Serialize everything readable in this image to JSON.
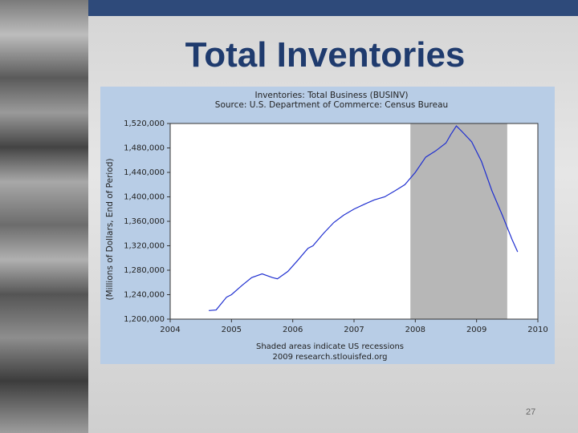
{
  "slide_title": "Total Inventories",
  "page_number": "27",
  "chart_data": {
    "type": "line",
    "title": "Inventories: Total Business (BUSINV)",
    "subtitle": "Source: U.S. Department of Commerce: Census Bureau",
    "ylabel": "(Millions of Dollars, End of Period)",
    "note": "Shaded areas indicate US recessions",
    "source": "2009 research.stlouisfed.org",
    "x": [
      2004.63,
      2004.75,
      2004.83,
      2004.92,
      2005.0,
      2005.17,
      2005.33,
      2005.5,
      2005.67,
      2005.75,
      2005.92,
      2006.08,
      2006.25,
      2006.33,
      2006.5,
      2006.67,
      2006.83,
      2007.0,
      2007.17,
      2007.33,
      2007.5,
      2007.67,
      2007.83,
      2008.0,
      2008.17,
      2008.33,
      2008.5,
      2008.58,
      2008.67,
      2008.75,
      2008.92,
      2009.08,
      2009.25,
      2009.42,
      2009.58,
      2009.67
    ],
    "series": [
      {
        "name": "BUSINV",
        "color": "#1f2fd0",
        "values": [
          1214000,
          1215000,
          1225000,
          1236000,
          1240000,
          1255000,
          1268000,
          1274000,
          1268000,
          1266000,
          1278000,
          1296000,
          1316000,
          1320000,
          1340000,
          1358000,
          1370000,
          1380000,
          1388000,
          1395000,
          1400000,
          1410000,
          1420000,
          1440000,
          1465000,
          1475000,
          1488000,
          1502000,
          1516000,
          1508000,
          1490000,
          1458000,
          1410000,
          1370000,
          1330000,
          1310000
        ]
      }
    ],
    "recessions": [
      [
        2007.92,
        2009.5
      ]
    ],
    "recession_color": "#b7b7b7",
    "xlim": [
      2004,
      2010
    ],
    "xticks": [
      2004,
      2005,
      2006,
      2007,
      2008,
      2009,
      2010
    ],
    "ylim": [
      1200000,
      1520000
    ],
    "yticks": [
      {
        "value": 1200000,
        "label": "1,200,000"
      },
      {
        "value": 1240000,
        "label": "1,240,000"
      },
      {
        "value": 1280000,
        "label": "1,280,000"
      },
      {
        "value": 1320000,
        "label": "1,320,000"
      },
      {
        "value": 1360000,
        "label": "1,360,000"
      },
      {
        "value": 1400000,
        "label": "1,400,000"
      },
      {
        "value": 1440000,
        "label": "1,440,000"
      },
      {
        "value": 1480000,
        "label": "1,480,000"
      },
      {
        "value": 1520000,
        "label": "1,520,000"
      }
    ]
  }
}
